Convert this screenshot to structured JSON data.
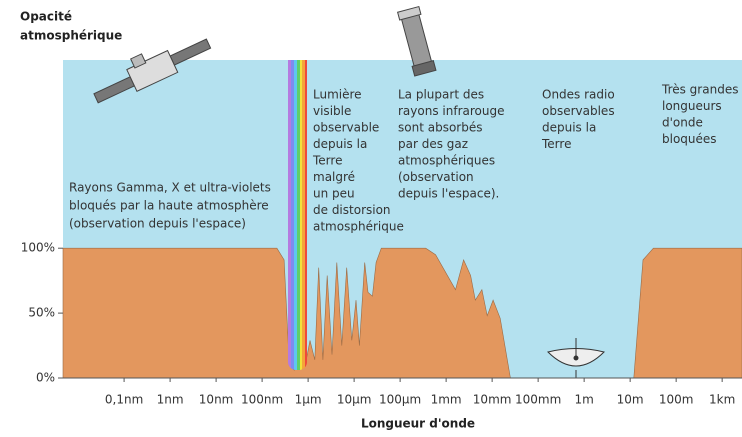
{
  "chart_data": {
    "type": "area",
    "y_label_lines": [
      "Opacité",
      "atmosphérique"
    ],
    "x_label": "Longueur d'onde",
    "xscale": "log",
    "xlim": [
      4.7e-12,
      2700
    ],
    "ylim": [
      0,
      245
    ],
    "xticks": [
      {
        "value": 1e-10,
        "label": "0,1nm"
      },
      {
        "value": 1e-09,
        "label": "1nm"
      },
      {
        "value": 1e-08,
        "label": "10nm"
      },
      {
        "value": 1e-07,
        "label": "100nm"
      },
      {
        "value": 1e-06,
        "label": "1µm"
      },
      {
        "value": 1e-05,
        "label": "10µm"
      },
      {
        "value": 0.0001,
        "label": "100µm"
      },
      {
        "value": 0.001,
        "label": "1mm"
      },
      {
        "value": 0.01,
        "label": "10mm"
      },
      {
        "value": 0.1,
        "label": "100mm"
      },
      {
        "value": 1,
        "label": "1m"
      },
      {
        "value": 10,
        "label": "10m"
      },
      {
        "value": 100,
        "label": "100m"
      },
      {
        "value": 1000,
        "label": "1km"
      }
    ],
    "yticks": [
      {
        "value": 0,
        "label": "0%"
      },
      {
        "value": 50,
        "label": "50%"
      },
      {
        "value": 100,
        "label": "100%"
      }
    ],
    "x": [
      4.7e-12,
      2.1e-07,
      3e-07,
      3.9e-07,
      5e-07,
      6.5e-07,
      7.4e-07,
      8.7e-07,
      1.1e-06,
      1.4e-06,
      1.7e-06,
      2.1e-06,
      2.6e-06,
      3.3e-06,
      4.2e-06,
      5.4e-06,
      6.9e-06,
      8.9e-06,
      1.1e-05,
      1.3e-05,
      1.7e-05,
      2e-05,
      2.5e-05,
      3e-05,
      3.9e-05,
      0.00036,
      0.00059,
      0.0016,
      0.0024,
      0.0034,
      0.0043,
      0.006,
      0.0078,
      0.0105,
      0.015,
      0.025,
      12,
      19,
      32,
      2700
    ],
    "values": [
      100,
      100,
      91,
      10,
      6,
      14,
      60,
      10,
      29,
      14,
      85,
      14,
      79,
      18,
      89,
      25,
      85,
      29,
      60,
      25,
      89,
      66,
      63,
      89,
      100,
      100,
      95,
      68,
      91,
      79,
      60,
      68,
      48,
      60,
      46,
      0,
      0,
      91,
      100,
      100
    ],
    "color": "#e3975e",
    "plot_background": "#b4e1ef",
    "annotations": [
      [
        "Rayons Gamma, X et ultra-violets",
        "bloqués par la haute atmosphère",
        "(observation depuis l'espace)"
      ],
      [
        "Lumière",
        "visible",
        "observable",
        "depuis la",
        "Terre",
        "malgré",
        "un peu",
        "de distorsion",
        "atmosphérique"
      ],
      [
        "La plupart des",
        "rayons infrarouge",
        "sont absorbés",
        "par des gaz",
        "atmosphériques",
        "(observation",
        "depuis l'espace)."
      ],
      [
        "Ondes radio",
        "observables",
        "depuis la",
        "Terre"
      ],
      [
        "Très grandes",
        "longueurs",
        "d'onde",
        "bloquées"
      ]
    ]
  }
}
